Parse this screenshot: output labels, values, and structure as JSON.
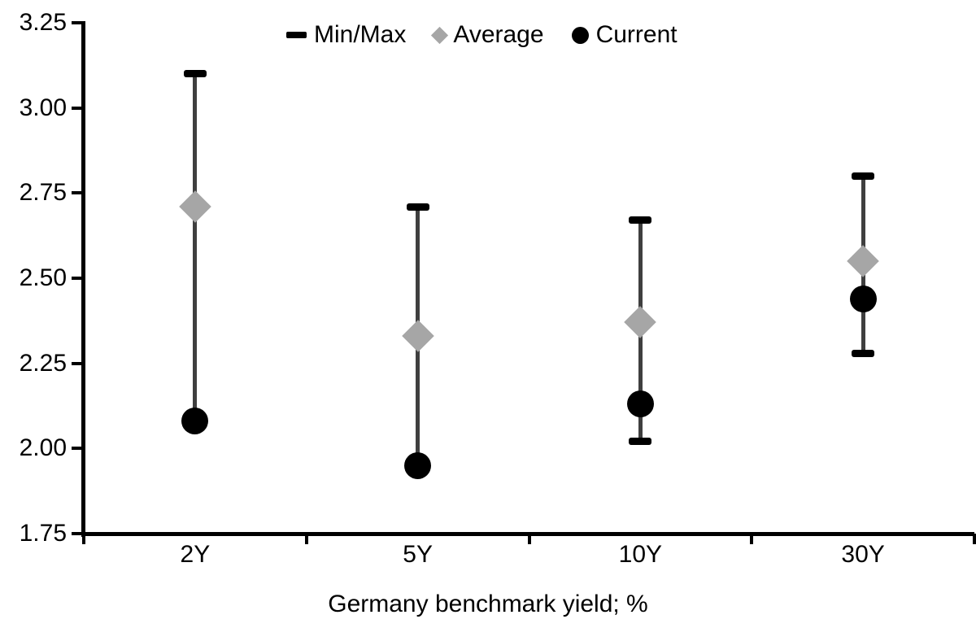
{
  "chart_data": {
    "type": "scatter",
    "subtype": "min-max-range-with-markers",
    "title": "",
    "xlabel": "Germany benchmark yield; %",
    "ylabel": "",
    "categories": [
      "2Y",
      "5Y",
      "10Y",
      "30Y"
    ],
    "series": [
      {
        "name": "Min/Max",
        "marker": "dash",
        "min": [
          2.08,
          1.95,
          2.02,
          2.28
        ],
        "max": [
          3.1,
          2.71,
          2.67,
          2.8
        ]
      },
      {
        "name": "Average",
        "marker": "diamond",
        "values": [
          2.71,
          2.33,
          2.37,
          2.55
        ]
      },
      {
        "name": "Current",
        "marker": "circle",
        "values": [
          2.08,
          1.95,
          2.13,
          2.44
        ]
      }
    ],
    "ylim": [
      1.75,
      3.25
    ],
    "ytick_step": 0.25,
    "ytick_labels": [
      "3.25",
      "3.00",
      "2.75",
      "2.50",
      "2.25",
      "2.00",
      "1.75"
    ],
    "grid": false,
    "legend_position": "top-center",
    "colors": {
      "minmax_cap": "#000000",
      "range_line": "#3f3f3f",
      "average_marker": "#a6a6a6",
      "current_marker": "#000000",
      "axis": "#000000",
      "text": "#000000",
      "background": "#ffffff"
    }
  }
}
